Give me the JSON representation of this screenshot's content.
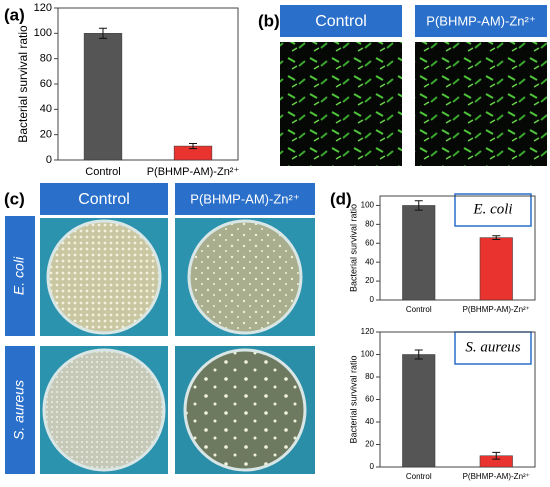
{
  "chart_data": [
    {
      "type": "bar",
      "panel": "(a)",
      "categories": [
        "Control",
        "P(BHMP-AM)-Zn²⁺"
      ],
      "values": [
        100,
        11
      ],
      "errors": [
        4,
        2
      ],
      "colors": [
        "#555555",
        "#e8332f"
      ],
      "ylabel": "Bacterial survival ratio",
      "ylim": [
        0,
        120
      ],
      "yticks": [
        0,
        20,
        40,
        60,
        80,
        100,
        120
      ]
    },
    {
      "type": "bar",
      "annotation": "E. coli",
      "categories": [
        "Control",
        "P(BHMP-AM)-Zn²⁺"
      ],
      "values": [
        100,
        66
      ],
      "errors": [
        5,
        2
      ],
      "colors": [
        "#555555",
        "#e8332f"
      ],
      "ylabel": "Bacterial survival ratio",
      "ylim": [
        0,
        110
      ],
      "yticks": [
        0,
        20,
        40,
        60,
        80,
        100
      ]
    },
    {
      "type": "bar",
      "annotation": "S. aureus",
      "categories": [
        "Control",
        "P(BHMP-AM)-Zn²⁺"
      ],
      "values": [
        100,
        10
      ],
      "errors": [
        4,
        3
      ],
      "colors": [
        "#555555",
        "#e8332f"
      ],
      "ylabel": "Bacterial survival ratio",
      "ylim": [
        0,
        120
      ],
      "yticks": [
        0,
        20,
        40,
        60,
        80,
        100,
        120
      ]
    }
  ],
  "panels": {
    "b": "(b)",
    "c": "(c)",
    "d": "(d)"
  },
  "images": {
    "b_headers": [
      "Control",
      "P(BHMP-AM)-Zn²⁺"
    ],
    "c_headers": [
      "Control",
      "P(BHMP-AM)-Zn²⁺"
    ],
    "c_rows": [
      "E. coli",
      "S. aureus"
    ]
  }
}
